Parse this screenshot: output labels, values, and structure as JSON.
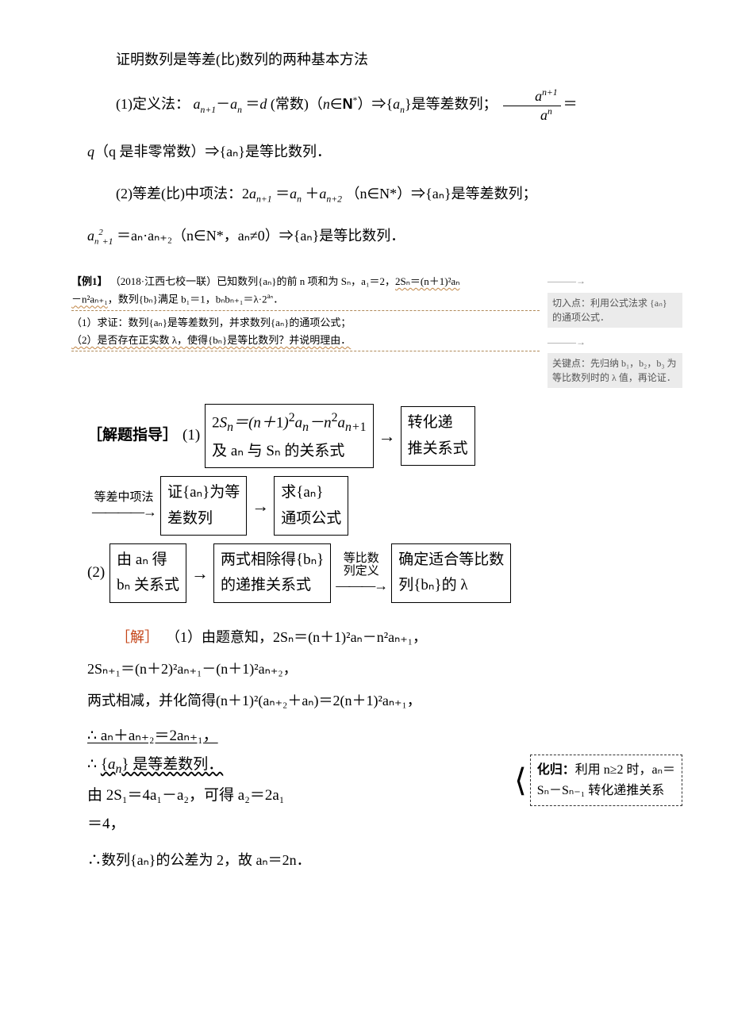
{
  "title": "证明数列是等差(比)数列的两种基本方法",
  "def1_lead": "(1)定义法：",
  "def1_a": "a",
  "def1_text1": "＝",
  "def1_d": "d",
  "def1_text2": "(常数)（",
  "def1_n": "n",
  "def1_in": "∈",
  "def1_N": "N",
  "def1_star": "*",
  "def1_text3": "）⇒{",
  "def1_text4": "}是等差数列；",
  "def1_frac_num": "a",
  "def1_q_tail": "（q 是非零常数）⇒{aₙ}是等比数列．",
  "def2_lead": "(2)等差(比)中项法：2",
  "def2_mid": "＝",
  "def2_plus": "＋",
  "def2_tail1": "（n∈N*）⇒{aₙ}是等差数列；",
  "def2_line2a": "a",
  "def2_line2b": "＝aₙ·aₙ₊₂（n∈N*，aₙ≠0）⇒{aₙ}是等比数列．",
  "example": {
    "tag": "【例1】",
    "src": "（2018·江西七校一联）已知数列{aₙ}的前 n 项和为 Sₙ，a₁＝2，",
    "eq1": "2Sₙ＝(n＋1)²aₙ",
    "eq2": "－n²aₙ₊₁",
    "line2_a": "，数列{bₙ}满足 b₁＝1，bₙbₙ₊₁＝λ·2",
    "line2_aexp": "aₙ",
    "line2_b": "．",
    "q1": "（1）求证：数列{aₙ}是等差数列，并求数列{aₙ}的通项公式；",
    "q2": "（2）是否存在正实数 λ，使得{bₙ}是等比数列？并说明理由．",
    "side1": "切入点：利用公式法求 {aₙ} 的通项公式．",
    "side2": "关键点：先归纳 b₁，b₂，b₃ 为等比数列时的 λ 值，再论证．"
  },
  "guide_label": "［解题指导］",
  "flow": {
    "r1_lead": "(1)",
    "r1_b1_l1": "2Sₙ＝(n＋1)²aₙ－n²aₙ₊₁",
    "r1_b1_l2": "及 aₙ 与 Sₙ 的关系式",
    "r1_b2_l1": "转化递",
    "r1_b2_l2": "推关系式",
    "r2_arrlab": "等差中项法",
    "r2_b1_l1": "证{aₙ}为等",
    "r2_b1_l2": "差数列",
    "r2_b2_l1": "求{aₙ}",
    "r2_b2_l2": "通项公式",
    "r3_lead": "(2)",
    "r3_b1_l1": "由 aₙ 得",
    "r3_b1_l2": "bₙ 关系式",
    "r3_b2_l1": "两式相除得{bₙ}",
    "r3_b2_l2": "的递推关系式",
    "r3_arrlab_l1": "等比数",
    "r3_arrlab_l2": "列定义",
    "r3_b3_l1": "确定适合等比数",
    "r3_b3_l2": "列{bₙ}的 λ"
  },
  "sol": {
    "label": "［解］",
    "p1": "（1）由题意知，2Sₙ＝(n＋1)²aₙ－n²aₙ₊₁，",
    "p2": "2Sₙ₊₁＝(n＋2)²aₙ₊₁－(n＋1)²aₙ₊₂，",
    "p3": "两式相减，并化简得(n＋1)²(aₙ₊₂＋aₙ)＝2(n＋1)²aₙ₊₁，",
    "left_l1": "∴ aₙ＋aₙ₊₂＝2aₙ₊₁，",
    "left_l2": "∴ {aₙ} 是等差数列．",
    "left_l3": "由 2S₁＝4a₁－a₂，可得 a₂＝2a₁",
    "left_l4": "＝4，",
    "callout_hdr": "化归：",
    "callout_body1": "利用 n≥2 时，aₙ＝",
    "callout_body2": "Sₙ－Sₙ₋₁ 转化递推关系",
    "p_last": "∴数列{aₙ}的公差为 2，故 aₙ＝2n．"
  }
}
